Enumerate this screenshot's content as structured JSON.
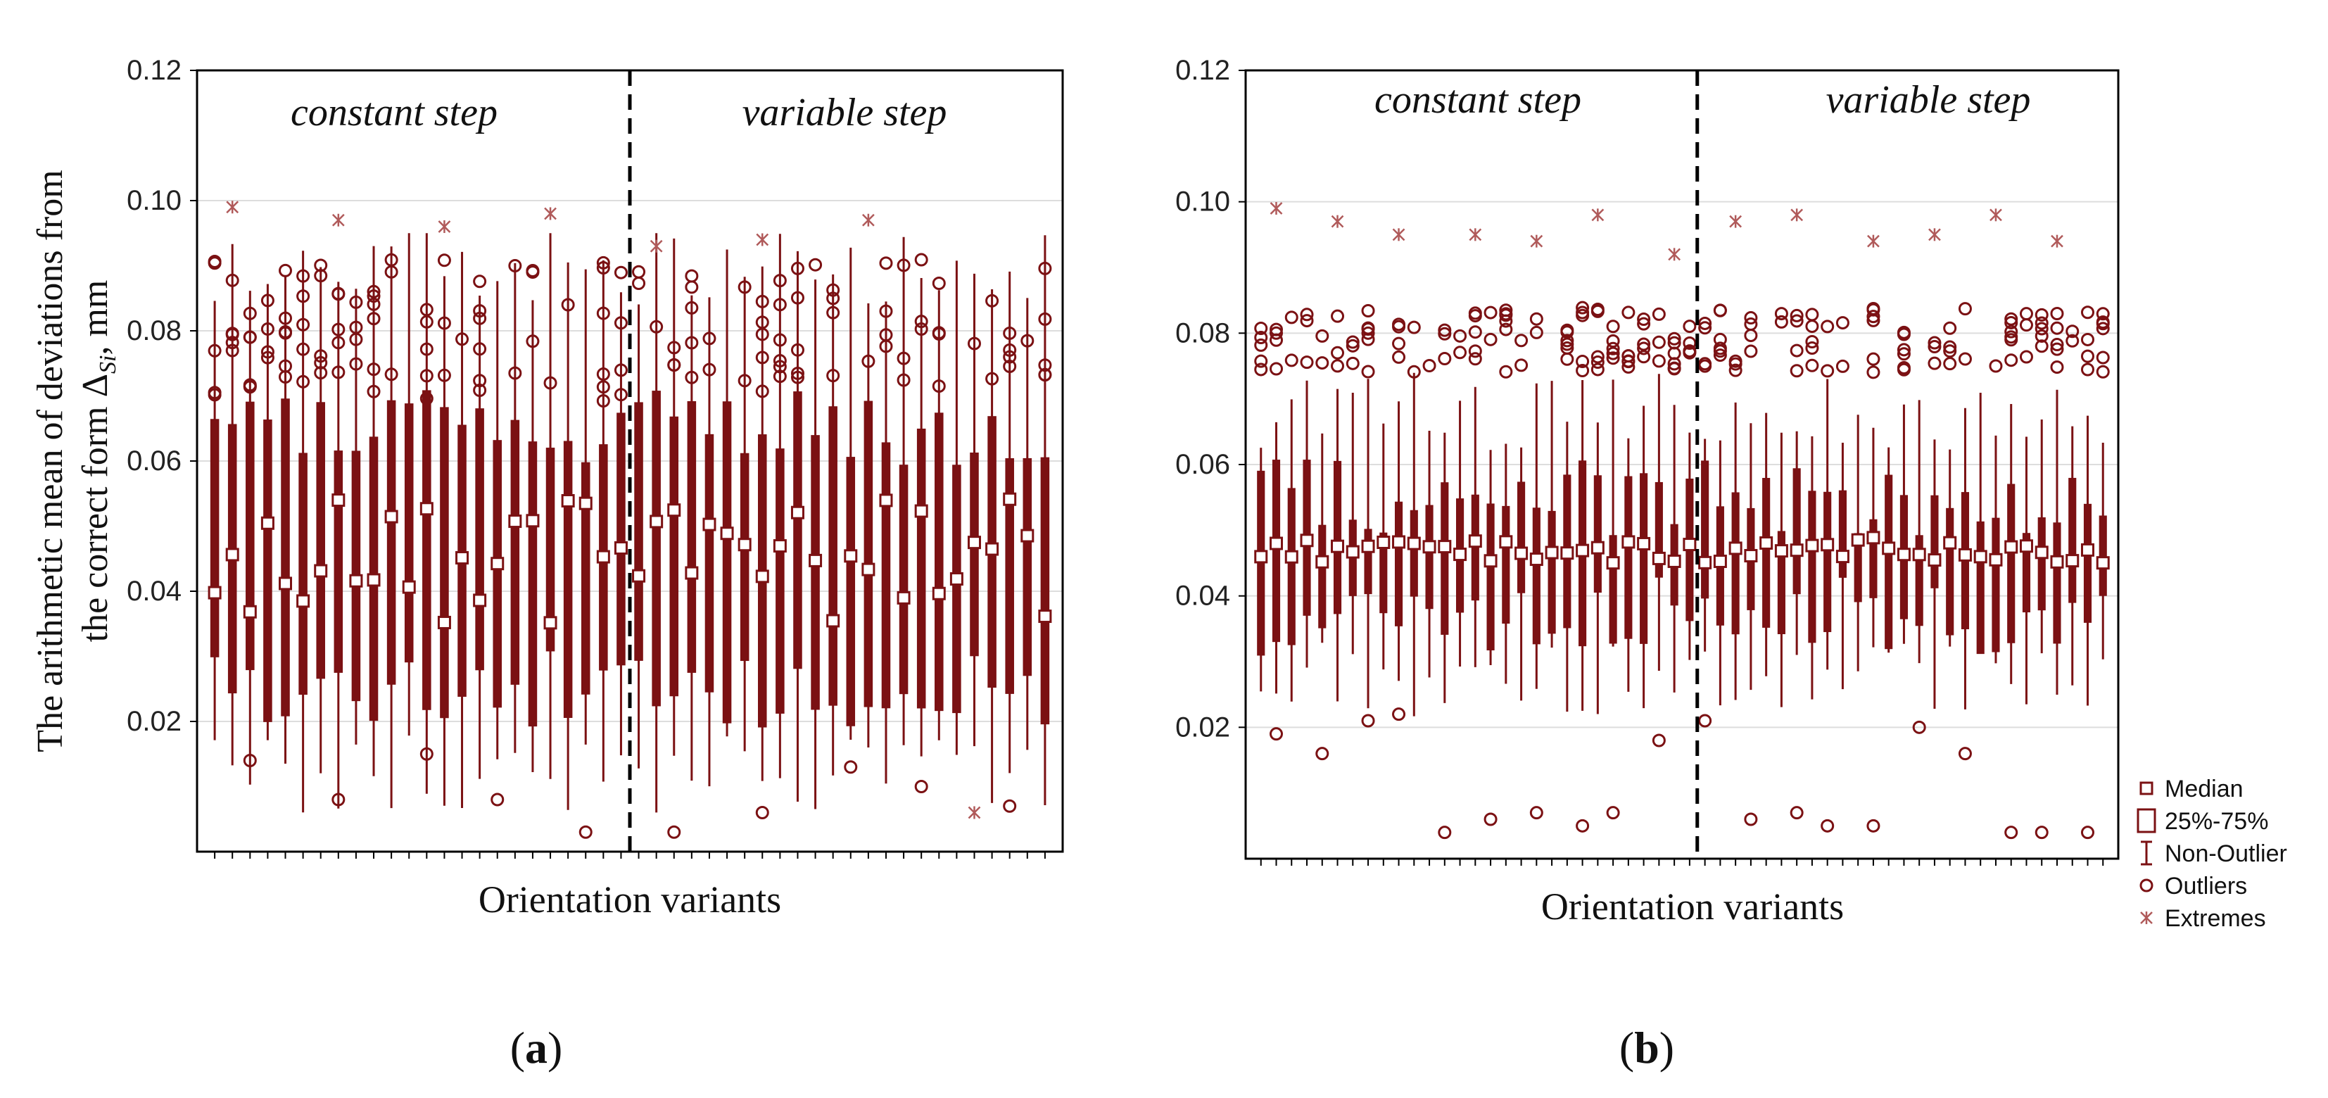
{
  "colors": {
    "box": "#7b1113",
    "grid": "#dddddd",
    "axis": "#000000",
    "extreme": "#b05a5a"
  },
  "chart_data": [
    {
      "panel": "a",
      "type": "box",
      "panel_label": {
        "open": "(",
        "letter": "a",
        "close": ")"
      },
      "xlabel": "Orientation variants",
      "ylabel_line1": "The arithmetic mean of deviations from",
      "ylabel_line2_main": "the correct form Δ",
      "ylabel_line2_sub": "Si",
      "ylabel_line2_unit": ", mm",
      "ylim": [
        0.0,
        0.12
      ],
      "yticks": [
        "0.02",
        "0.04",
        "0.06",
        "0.08",
        "0.10",
        "0.12"
      ],
      "region_left": "constant step",
      "region_right": "variable step",
      "n_variants": 48,
      "divider_after": 24,
      "median_mean": 0.045,
      "median_spread": 0.01,
      "q_low": 0.025,
      "q_high": 0.065,
      "whisker_low": 0.012,
      "whisker_high": 0.09,
      "outlier_high_mean": 0.08,
      "outlier_high_spread": 0.011,
      "outlier_low_values": [
        0.014,
        0.008,
        0.015,
        0.008,
        0.003,
        0.003,
        0.006,
        0.013,
        0.01,
        0.007
      ],
      "extreme_values": [
        0.099,
        0.097,
        0.096,
        0.098,
        0.093,
        0.094,
        0.097,
        0.006
      ]
    },
    {
      "panel": "b",
      "type": "box",
      "panel_label": {
        "open": "(",
        "letter": "b",
        "close": ")"
      },
      "xlabel": "Orientation variants",
      "ylim": [
        0.0,
        0.12
      ],
      "yticks": [
        "0.02",
        "0.04",
        "0.06",
        "0.08",
        "0.10",
        "0.12"
      ],
      "region_left": "constant step",
      "region_right": "variable step",
      "n_variants": 56,
      "divider_after": 29,
      "median_mean": 0.047,
      "median_spread": 0.002,
      "q_low": 0.037,
      "q_high": 0.055,
      "whisker_low": 0.027,
      "whisker_high": 0.068,
      "outlier_high_mean": 0.079,
      "outlier_high_spread": 0.005,
      "outlier_low_values": [
        0.019,
        0.016,
        0.021,
        0.022,
        0.004,
        0.006,
        0.007,
        0.005,
        0.007,
        0.018,
        0.021,
        0.006,
        0.007,
        0.005,
        0.005,
        0.02,
        0.016,
        0.004,
        0.004,
        0.004
      ],
      "extreme_values": [
        0.099,
        0.097,
        0.095,
        0.095,
        0.094,
        0.098,
        0.092,
        0.097,
        0.098,
        0.094,
        0.095,
        0.098,
        0.094
      ],
      "legend": {
        "items": [
          {
            "key": "median",
            "label": "Median"
          },
          {
            "key": "box",
            "label": "25%-75%"
          },
          {
            "key": "whisker",
            "label": "Non-Outlier"
          },
          {
            "key": "outlier",
            "label": "Outliers"
          },
          {
            "key": "extreme",
            "label": "Extremes"
          }
        ]
      }
    }
  ]
}
